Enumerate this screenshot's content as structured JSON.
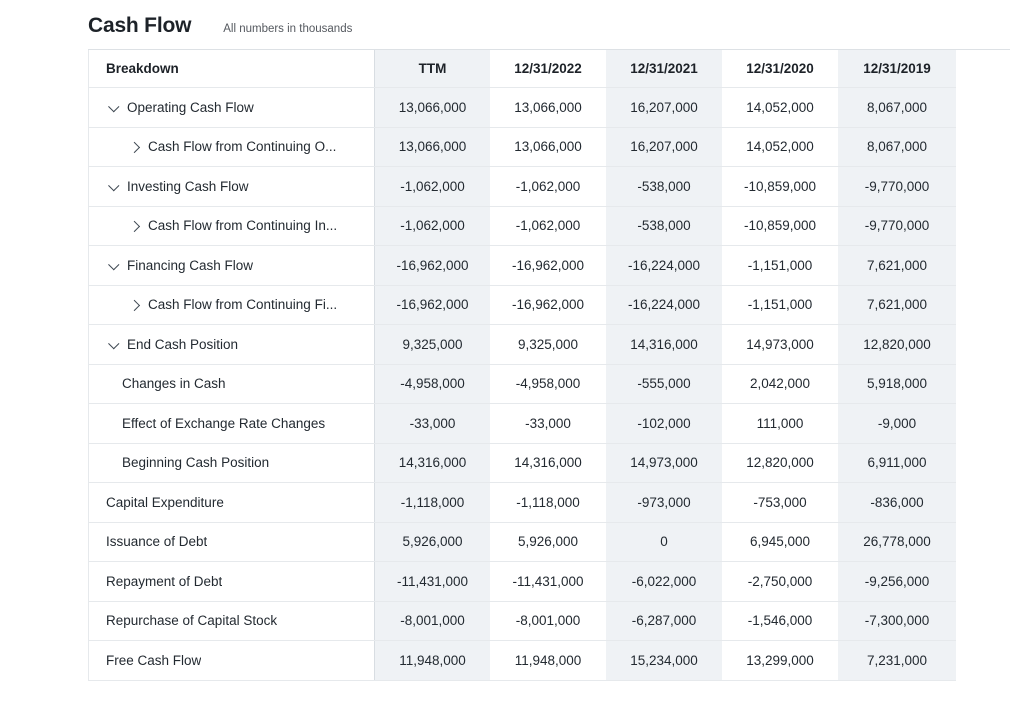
{
  "page": {
    "title": "Cash Flow",
    "subtitle": "All numbers in thousands"
  },
  "colors": {
    "shaded_column": "#eff2f5",
    "row_border": "#e6e9ec",
    "column_divider": "#d8dde2",
    "text": "#232a31"
  },
  "table": {
    "columns": [
      "Breakdown",
      "TTM",
      "12/31/2022",
      "12/31/2021",
      "12/31/2020",
      "12/31/2019"
    ],
    "rows": [
      {
        "label": "Operating Cash Flow",
        "type": "expandable",
        "expanded": true,
        "values": [
          "13,066,000",
          "13,066,000",
          "16,207,000",
          "14,052,000",
          "8,067,000"
        ]
      },
      {
        "label": "Cash Flow from Continuing O...",
        "type": "sub",
        "expanded": false,
        "values": [
          "13,066,000",
          "13,066,000",
          "16,207,000",
          "14,052,000",
          "8,067,000"
        ]
      },
      {
        "label": "Investing Cash Flow",
        "type": "expandable",
        "expanded": true,
        "values": [
          "-1,062,000",
          "-1,062,000",
          "-538,000",
          "-10,859,000",
          "-9,770,000"
        ]
      },
      {
        "label": "Cash Flow from Continuing In...",
        "type": "sub",
        "expanded": false,
        "values": [
          "-1,062,000",
          "-1,062,000",
          "-538,000",
          "-10,859,000",
          "-9,770,000"
        ]
      },
      {
        "label": "Financing Cash Flow",
        "type": "expandable",
        "expanded": true,
        "values": [
          "-16,962,000",
          "-16,962,000",
          "-16,224,000",
          "-1,151,000",
          "7,621,000"
        ]
      },
      {
        "label": "Cash Flow from Continuing Fi...",
        "type": "sub",
        "expanded": false,
        "values": [
          "-16,962,000",
          "-16,962,000",
          "-16,224,000",
          "-1,151,000",
          "7,621,000"
        ]
      },
      {
        "label": "End Cash Position",
        "type": "expandable",
        "expanded": true,
        "values": [
          "9,325,000",
          "9,325,000",
          "14,316,000",
          "14,973,000",
          "12,820,000"
        ]
      },
      {
        "label": "Changes in Cash",
        "type": "indent",
        "expanded": false,
        "values": [
          "-4,958,000",
          "-4,958,000",
          "-555,000",
          "2,042,000",
          "5,918,000"
        ]
      },
      {
        "label": "Effect of Exchange Rate Changes",
        "type": "indent",
        "expanded": false,
        "values": [
          "-33,000",
          "-33,000",
          "-102,000",
          "111,000",
          "-9,000"
        ]
      },
      {
        "label": "Beginning Cash Position",
        "type": "indent",
        "expanded": false,
        "values": [
          "14,316,000",
          "14,316,000",
          "14,973,000",
          "12,820,000",
          "6,911,000"
        ]
      },
      {
        "label": "Capital Expenditure",
        "type": "plain",
        "expanded": false,
        "values": [
          "-1,118,000",
          "-1,118,000",
          "-973,000",
          "-753,000",
          "-836,000"
        ]
      },
      {
        "label": "Issuance of Debt",
        "type": "plain",
        "expanded": false,
        "values": [
          "5,926,000",
          "5,926,000",
          "0",
          "6,945,000",
          "26,778,000"
        ]
      },
      {
        "label": "Repayment of Debt",
        "type": "plain",
        "expanded": false,
        "values": [
          "-11,431,000",
          "-11,431,000",
          "-6,022,000",
          "-2,750,000",
          "-9,256,000"
        ]
      },
      {
        "label": "Repurchase of Capital Stock",
        "type": "plain",
        "expanded": false,
        "values": [
          "-8,001,000",
          "-8,001,000",
          "-6,287,000",
          "-1,546,000",
          "-7,300,000"
        ]
      },
      {
        "label": "Free Cash Flow",
        "type": "plain",
        "expanded": false,
        "values": [
          "11,948,000",
          "11,948,000",
          "15,234,000",
          "13,299,000",
          "7,231,000"
        ]
      }
    ]
  }
}
